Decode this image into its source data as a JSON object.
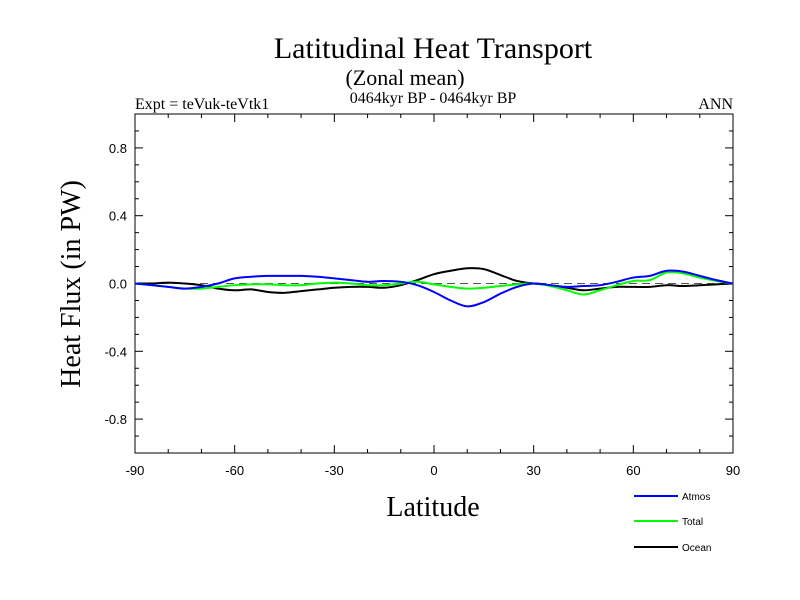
{
  "chart_data": {
    "type": "line",
    "title": "Latitudinal Heat Transport",
    "subtitle": "(Zonal mean)",
    "period": "0464kyr BP - 0464kyr BP",
    "experiment": "Expt = teVuk-teVtk1",
    "season": "ANN",
    "xlabel": "Latitude",
    "ylabel": "Heat Flux (in PW)",
    "xlim": [
      -90,
      90
    ],
    "ylim": [
      -1.0,
      1.0
    ],
    "x_ticks": [
      -90,
      -60,
      -30,
      0,
      30,
      60,
      90
    ],
    "x_tick_labels": [
      "-90",
      "-60",
      "-30",
      "0",
      "30",
      "60",
      "90"
    ],
    "y_ticks": [
      -0.8,
      -0.4,
      0.0,
      0.4,
      0.8
    ],
    "y_tick_labels": [
      "-0.8",
      "-0.4",
      "0.0",
      "0.4",
      "0.8"
    ],
    "zero_line": "dashed",
    "legend_placement": "bottom-right",
    "x": [
      -90,
      -85,
      -80,
      -75,
      -70,
      -65,
      -60,
      -55,
      -50,
      -45,
      -40,
      -35,
      -30,
      -25,
      -20,
      -15,
      -10,
      -5,
      0,
      5,
      10,
      15,
      20,
      25,
      30,
      35,
      40,
      45,
      50,
      55,
      60,
      65,
      70,
      75,
      80,
      85,
      90
    ],
    "series": [
      {
        "name": "Atmos",
        "color": "#0000ff",
        "values": [
          0.0,
          -0.01,
          -0.02,
          -0.03,
          -0.02,
          0.0,
          0.03,
          0.04,
          0.045,
          0.045,
          0.045,
          0.04,
          0.03,
          0.02,
          0.01,
          0.015,
          0.01,
          -0.01,
          -0.05,
          -0.1,
          -0.135,
          -0.11,
          -0.06,
          -0.02,
          0.0,
          -0.01,
          -0.02,
          -0.015,
          -0.01,
          0.01,
          0.035,
          0.045,
          0.075,
          0.07,
          0.045,
          0.02,
          0.0
        ]
      },
      {
        "name": "Total",
        "color": "#00ff00",
        "values": [
          0.0,
          -0.01,
          -0.02,
          -0.03,
          -0.03,
          -0.02,
          -0.01,
          -0.005,
          -0.005,
          -0.01,
          -0.01,
          0.0,
          0.005,
          0.0,
          -0.01,
          -0.01,
          0.0,
          0.01,
          -0.005,
          -0.02,
          -0.03,
          -0.025,
          -0.015,
          -0.005,
          0.0,
          -0.015,
          -0.04,
          -0.065,
          -0.04,
          -0.01,
          0.015,
          0.02,
          0.065,
          0.06,
          0.035,
          0.015,
          0.0
        ]
      },
      {
        "name": "Ocean",
        "color": "#000000",
        "values": [
          0.0,
          0.0,
          0.005,
          0.0,
          -0.01,
          -0.03,
          -0.04,
          -0.035,
          -0.05,
          -0.055,
          -0.045,
          -0.035,
          -0.025,
          -0.02,
          -0.02,
          -0.025,
          -0.01,
          0.02,
          0.055,
          0.075,
          0.09,
          0.085,
          0.05,
          0.015,
          0.0,
          -0.01,
          -0.025,
          -0.04,
          -0.03,
          -0.02,
          -0.02,
          -0.02,
          -0.01,
          -0.015,
          -0.01,
          -0.005,
          0.0
        ]
      }
    ]
  }
}
